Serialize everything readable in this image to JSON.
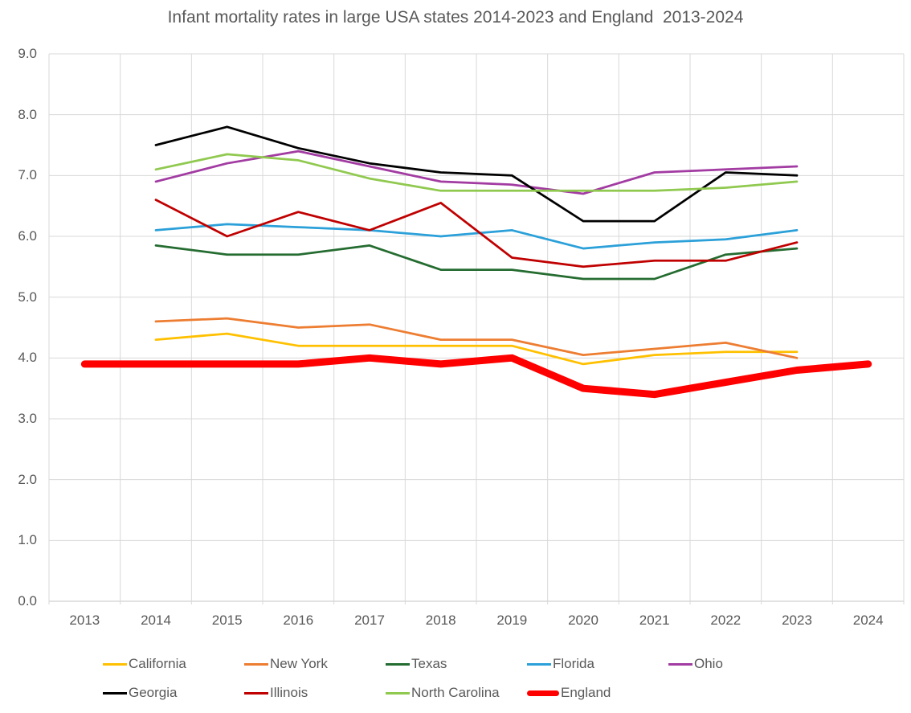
{
  "title": "Infant mortality rates in large USA states 2014-2023 and England  2013-2024",
  "chart_data": {
    "type": "line",
    "x_labels": [
      "2013",
      "2014",
      "2015",
      "2016",
      "2017",
      "2018",
      "2019",
      "2020",
      "2021",
      "2022",
      "2023",
      "2024"
    ],
    "y_tick_labels": [
      "0.0",
      "1.0",
      "2.0",
      "3.0",
      "4.0",
      "5.0",
      "6.0",
      "7.0",
      "8.0",
      "9.0"
    ],
    "ylim": [
      0,
      9
    ],
    "grid": true,
    "legend_position": "bottom",
    "axis_text_color": "#595959",
    "gridline_color": "#D9D9D9",
    "series": [
      {
        "name": "California",
        "color": "#FFC000",
        "thick": false,
        "values": [
          null,
          4.3,
          4.4,
          4.2,
          4.2,
          4.2,
          4.2,
          3.9,
          4.05,
          4.1,
          4.1,
          null
        ]
      },
      {
        "name": "New York",
        "color": "#ED7D31",
        "thick": false,
        "values": [
          null,
          4.6,
          4.65,
          4.5,
          4.55,
          4.3,
          4.3,
          4.05,
          4.15,
          4.25,
          4.0,
          null
        ]
      },
      {
        "name": "Texas",
        "color": "#256C31",
        "thick": false,
        "values": [
          null,
          5.85,
          5.7,
          5.7,
          5.85,
          5.45,
          5.45,
          5.3,
          5.3,
          5.7,
          5.8,
          null
        ]
      },
      {
        "name": "Florida",
        "color": "#2BA0D9",
        "thick": false,
        "values": [
          null,
          6.1,
          6.2,
          6.15,
          6.1,
          6.0,
          6.1,
          5.8,
          5.9,
          5.95,
          6.1,
          null
        ]
      },
      {
        "name": "Ohio",
        "color": "#A23BA2",
        "thick": false,
        "values": [
          null,
          6.9,
          7.2,
          7.4,
          7.15,
          6.9,
          6.85,
          6.7,
          7.05,
          7.1,
          7.15,
          null
        ]
      },
      {
        "name": "Georgia",
        "color": "#000000",
        "thick": false,
        "values": [
          null,
          7.5,
          7.8,
          7.45,
          7.2,
          7.05,
          7.0,
          6.25,
          6.25,
          7.05,
          7.0,
          null
        ]
      },
      {
        "name": "Illinois",
        "color": "#C00000",
        "thick": false,
        "values": [
          null,
          6.6,
          6.0,
          6.4,
          6.1,
          6.55,
          5.65,
          5.5,
          5.6,
          5.6,
          5.9,
          null
        ]
      },
      {
        "name": "North Carolina",
        "color": "#90C94F",
        "thick": false,
        "values": [
          null,
          7.1,
          7.35,
          7.25,
          6.95,
          6.75,
          6.75,
          6.75,
          6.75,
          6.8,
          6.9,
          null
        ]
      },
      {
        "name": "England",
        "color": "#FF0000",
        "thick": true,
        "values": [
          3.9,
          3.9,
          3.9,
          3.9,
          4.0,
          3.9,
          4.0,
          3.5,
          3.4,
          3.6,
          3.8,
          3.9
        ]
      }
    ]
  }
}
